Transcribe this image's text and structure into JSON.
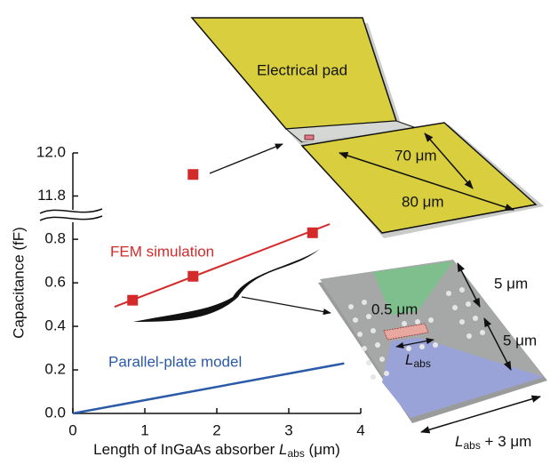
{
  "chart_data": {
    "type": "scatter",
    "y_label": "Capacitance (fF)",
    "x_label": {
      "text": "Length of InGaAs absorber ",
      "symbol": "L",
      "subscript": "abs",
      "unit": " (μm)"
    },
    "xlim": [
      0,
      4
    ],
    "xticks": [
      0,
      1,
      2,
      3,
      4
    ],
    "ylim": [
      0,
      0.87
    ],
    "yticks": [
      {
        "value": 0,
        "label": "0.0"
      },
      0.2,
      0.4,
      0.6,
      0.8
    ],
    "y2lim": [
      11.74,
      12.0
    ],
    "y2ticks": [
      11.8,
      {
        "value": 12,
        "label": "12.0"
      }
    ],
    "series": [
      {
        "name": "FEM simulation",
        "color": "#d42a2a",
        "x": [
          0.83,
          1.67,
          3.33
        ],
        "values": [
          0.52,
          0.63,
          0.83
        ],
        "fit_x": [
          0.58,
          3.57
        ],
        "fit_values": [
          0.49,
          0.87
        ]
      },
      {
        "name": "Parallel-plate model",
        "color": "#2b5aa8",
        "x": [
          0,
          3.77
        ],
        "values": [
          0,
          0.23
        ]
      },
      {
        "color": "#d42a2a",
        "axis": "y2",
        "x": [
          1.67
        ],
        "values": [
          11.9
        ]
      }
    ]
  },
  "diagram": {
    "pad_label": "Electrical pad",
    "pad_width": "70 μm",
    "pad_length": "80 μm",
    "region_top": "5 μm",
    "region_bottom": "5 μm",
    "gap": "0.5 μm",
    "absorber": {
      "symbol": "L",
      "subscript": "abs"
    },
    "total": {
      "symbol": "L",
      "subscript": "abs",
      "text": " + 3 μm"
    }
  }
}
